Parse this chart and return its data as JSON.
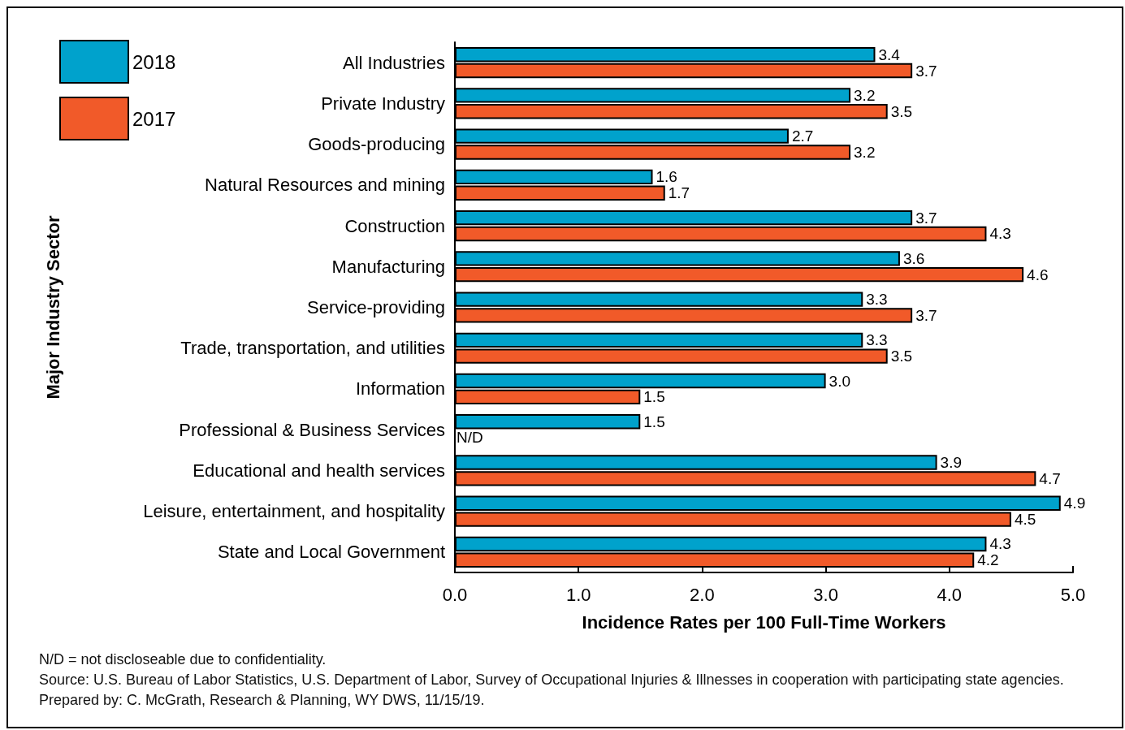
{
  "chart_data": {
    "type": "bar",
    "orientation": "horizontal",
    "xlabel": "Incidence Rates per 100 Full-Time Workers",
    "ylabel": "Major Industry Sector",
    "categories": [
      "All Industries",
      "Private Industry",
      "Goods-producing",
      "Natural Resources and mining",
      "Construction",
      "Manufacturing",
      "Service-providing",
      "Trade, transportation, and utilities",
      "Information",
      "Professional & Business Services",
      "Educational and health services",
      "Leisure, entertainment, and hospitality",
      "State and Local Government"
    ],
    "series": [
      {
        "name": "2018",
        "color": "#00a2cc",
        "values": [
          3.4,
          3.2,
          2.7,
          1.6,
          3.7,
          3.6,
          3.3,
          3.3,
          3.0,
          1.5,
          3.9,
          4.9,
          4.3
        ],
        "value_labels": [
          "3.4",
          "3.2",
          "2.7",
          "1.6",
          "3.7",
          "3.6",
          "3.3",
          "3.3",
          "3.0",
          "1.5",
          "3.9",
          "4.9",
          "4.3"
        ]
      },
      {
        "name": "2017",
        "color": "#f15a29",
        "values": [
          3.7,
          3.5,
          3.2,
          1.7,
          4.3,
          4.6,
          3.7,
          3.5,
          1.5,
          null,
          4.7,
          4.5,
          4.2
        ],
        "value_labels": [
          "3.7",
          "3.5",
          "3.2",
          "1.7",
          "4.3",
          "4.6",
          "3.7",
          "3.5",
          "1.5",
          "N/D",
          "4.7",
          "4.5",
          "4.2"
        ]
      }
    ],
    "xlim": [
      0,
      5
    ],
    "xticks": [
      {
        "value": 0,
        "label": "0.0"
      },
      {
        "value": 1,
        "label": "1.0"
      },
      {
        "value": 2,
        "label": "2.0"
      },
      {
        "value": 3,
        "label": "3.0"
      },
      {
        "value": 4,
        "label": "4.0"
      },
      {
        "value": 5,
        "label": "5.0"
      }
    ],
    "grid": false,
    "legend": "top left",
    "annotations": [
      "N/D = not discloseable due to confidentiality.",
      "Source: U.S. Bureau of Labor Statistics, U.S. Department of Labor, Survey of Occupational Injuries & Illnesses in cooperation with participating state agencies. Prepared by: C. McGrath, Research & Planning, WY DWS, 11/15/19."
    ]
  }
}
